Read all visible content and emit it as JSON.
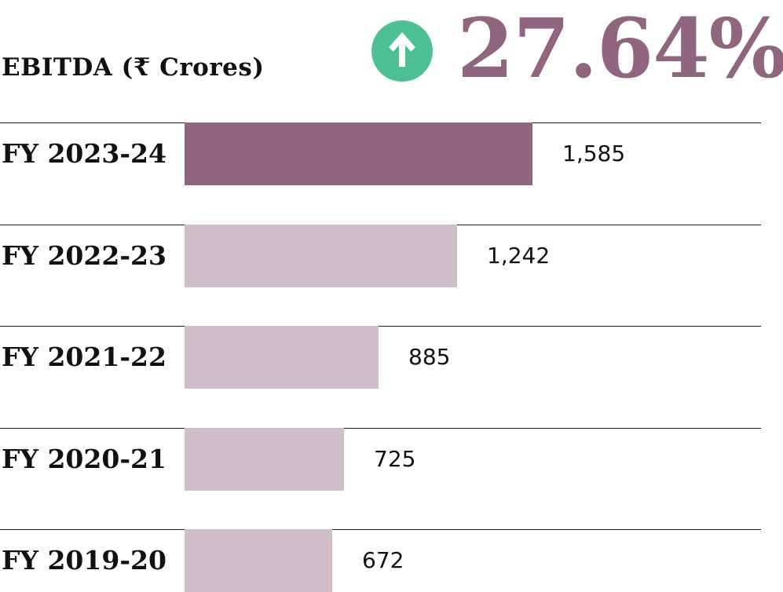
{
  "chart_data": {
    "type": "bar",
    "orientation": "horizontal",
    "title": "EBITDA (₹ Crores)",
    "growth": {
      "value": "27.64%",
      "direction": "up",
      "icon": "arrow-up-circle-icon"
    },
    "categories": [
      "FY 2023-24",
      "FY 2022-23",
      "FY 2021-22",
      "FY 2020-21",
      "FY 2019-20"
    ],
    "values": [
      1585,
      1242,
      885,
      725,
      672
    ],
    "value_labels": [
      "1,585",
      "1,242",
      "885",
      "725",
      "672"
    ],
    "xlim": [
      0,
      1585
    ],
    "grid": false,
    "colors": {
      "highlight_bar": "#8f6580",
      "other_bars": "#d2bec8",
      "icon_background": "#4cbf93",
      "growth_text": "#8f6580",
      "divider": "#1a1a1a"
    }
  }
}
